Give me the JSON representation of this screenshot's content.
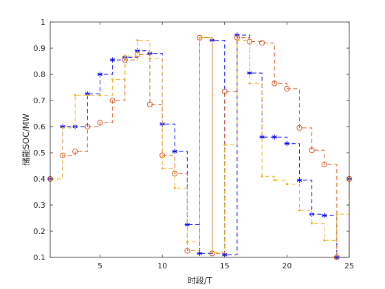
{
  "chart_data": {
    "type": "line",
    "step": "stairs",
    "xlabel": "时段/T",
    "ylabel": "储能SOC/MW",
    "xlim": [
      1,
      25
    ],
    "ylim": [
      0.1,
      1.0
    ],
    "x_ticks": [
      5,
      10,
      15,
      20,
      25
    ],
    "x_tick_labels": [
      "5",
      "10",
      "15",
      "20",
      "25"
    ],
    "y_ticks": [
      0.1,
      0.2,
      0.3,
      0.4,
      0.5,
      0.6,
      0.7,
      0.8,
      0.9,
      1.0
    ],
    "y_tick_labels": [
      "0.1",
      "0.2",
      "0.3",
      "0.4",
      "0.5",
      "0.6",
      "0.7",
      "0.8",
      "0.9",
      "1"
    ],
    "grid": false,
    "legend": false,
    "x": [
      1,
      2,
      3,
      4,
      5,
      6,
      7,
      8,
      9,
      10,
      11,
      12,
      13,
      14,
      15,
      16,
      17,
      18,
      19,
      20,
      21,
      22,
      23,
      24,
      25
    ],
    "series": [
      {
        "color": "#0000ff",
        "marker": "asterisk",
        "values": [
          0.4,
          0.6,
          0.6,
          0.725,
          0.8,
          0.855,
          0.865,
          0.89,
          0.88,
          0.61,
          0.505,
          0.225,
          0.115,
          0.93,
          0.11,
          0.95,
          0.805,
          0.56,
          0.56,
          0.535,
          0.395,
          0.265,
          0.26,
          0.1,
          0.4
        ]
      },
      {
        "color": "#d95319",
        "marker": "circle",
        "values": [
          0.4,
          0.49,
          0.505,
          0.6,
          0.615,
          0.7,
          0.855,
          0.875,
          0.685,
          0.49,
          0.42,
          0.125,
          0.94,
          0.115,
          0.735,
          0.94,
          0.925,
          0.92,
          0.765,
          0.745,
          0.595,
          0.51,
          0.455,
          0.1,
          0.4
        ]
      },
      {
        "color": "#edb120",
        "marker": "point",
        "values": [
          0.4,
          0.595,
          0.72,
          0.72,
          0.72,
          0.78,
          0.87,
          0.93,
          0.86,
          0.44,
          0.365,
          0.16,
          0.94,
          0.12,
          0.53,
          0.93,
          0.765,
          0.41,
          0.395,
          0.38,
          0.28,
          0.23,
          0.165,
          0.265,
          0.4
        ]
      }
    ]
  }
}
